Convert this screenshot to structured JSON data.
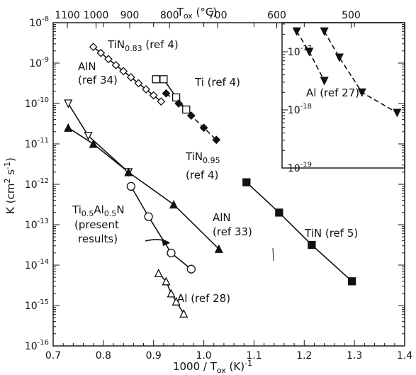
{
  "chart_data": [
    {
      "type": "scatter",
      "title": "",
      "xlabel": "1000 / T_ox (K)^-1",
      "ylabel": "K (cm^2 s^-1)",
      "top_xlabel": "T_ox (°C)",
      "xlim": [
        0.7,
        1.4
      ],
      "ylim_log10": [
        -16,
        -8
      ],
      "yscale": "log",
      "x_ticks": [
        "0.7",
        "0.8",
        "0.9",
        "1.0",
        "1.1",
        "1.2",
        "1.3",
        "1.4"
      ],
      "top_ticks_C": [
        "1100",
        "1000",
        "900",
        "800",
        "700",
        "600",
        "500"
      ],
      "top_ticks_display": [
        "1100",
        "1000",
        "900",
        "800",
        "700"
      ],
      "y_ticks_log10": [
        -16,
        -15,
        -14,
        -13,
        -12,
        -11,
        -10,
        -9,
        -8
      ],
      "series": [
        {
          "label": "TiN0.83 (ref 4)",
          "marker": "open-diamond",
          "line": "solid",
          "points": [
            [
              0.78,
              -8.6
            ],
            [
              0.795,
              -8.75
            ],
            [
              0.81,
              -8.9
            ],
            [
              0.825,
              -9.05
            ],
            [
              0.84,
              -9.2
            ],
            [
              0.855,
              -9.35
            ],
            [
              0.87,
              -9.5
            ],
            [
              0.885,
              -9.65
            ],
            [
              0.9,
              -9.8
            ],
            [
              0.915,
              -9.95
            ]
          ]
        },
        {
          "label": "Ti (ref 4)",
          "marker": "open-square",
          "line": "solid",
          "points": [
            [
              0.905,
              -9.4
            ],
            [
              0.92,
              -9.4
            ],
            [
              0.945,
              -9.85
            ],
            [
              0.965,
              -10.15
            ]
          ]
        },
        {
          "label": "TiN0.95 (ref 4)",
          "marker": "filled-diamond",
          "line": "dashed",
          "points": [
            [
              0.925,
              -9.75
            ],
            [
              0.95,
              -10.0
            ],
            [
              0.975,
              -10.3
            ],
            [
              1.0,
              -10.6
            ],
            [
              1.025,
              -10.9
            ]
          ]
        },
        {
          "label": "AlN (ref 34)",
          "marker": "open-triangle-down",
          "line": "solid",
          "points": [
            [
              0.73,
              -10.0
            ],
            [
              0.77,
              -10.8
            ],
            [
              0.85,
              -11.7
            ]
          ]
        },
        {
          "label": "AlN (ref 33)",
          "marker": "filled-triangle",
          "line": "solid",
          "points": [
            [
              0.73,
              -10.6
            ],
            [
              0.78,
              -11.0
            ],
            [
              0.85,
              -11.7
            ],
            [
              0.94,
              -12.5
            ],
            [
              1.03,
              -13.6
            ]
          ]
        },
        {
          "label": "Ti0.5Al0.5N (present results)",
          "marker": "open-circle",
          "line": "solid",
          "points": [
            [
              0.855,
              -12.05
            ],
            [
              0.89,
              -12.8
            ],
            [
              0.935,
              -13.7
            ],
            [
              0.975,
              -14.1
            ]
          ]
        },
        {
          "label": "Al (ref 28)",
          "marker": "open-triangle",
          "line": "solid",
          "points": [
            [
              0.91,
              -14.2
            ],
            [
              0.925,
              -14.4
            ],
            [
              0.935,
              -14.7
            ],
            [
              0.945,
              -14.9
            ],
            [
              0.96,
              -15.2
            ]
          ]
        },
        {
          "label": "TiN (ref 5)",
          "marker": "filled-square",
          "line": "solid",
          "points": [
            [
              1.085,
              -11.95
            ],
            [
              1.15,
              -12.7
            ],
            [
              1.215,
              -13.5
            ],
            [
              1.295,
              -14.4
            ]
          ]
        }
      ],
      "grid": false
    },
    {
      "type": "scatter",
      "title": "",
      "inset": true,
      "top_ticks_C": [
        "600",
        "500"
      ],
      "xlim": [
        1.15,
        1.4
      ],
      "ylim_log10": [
        -19,
        -16.5
      ],
      "yscale": "log",
      "y_ticks_log10": [
        -17,
        -18,
        -19
      ],
      "series": [
        {
          "label": "Al (ref 27)",
          "marker": "filled-triangle-down",
          "line": "dashed",
          "points": [
            [
              1.185,
              -16.65
            ],
            [
              1.21,
              -17.0
            ],
            [
              1.24,
              -17.5
            ]
          ]
        },
        {
          "label": "Al (ref 27)",
          "marker": "filled-triangle-down",
          "line": "dashed",
          "points": [
            [
              1.24,
              -16.65
            ],
            [
              1.27,
              -17.1
            ],
            [
              1.315,
              -17.7
            ],
            [
              1.385,
              -18.05
            ]
          ]
        }
      ],
      "grid": false
    }
  ],
  "text": {
    "y_label_main": "K (cm",
    "y_label_sup": "2",
    "y_label_mid": " s",
    "y_label_sup2": "-1",
    "y_label_end": ")",
    "x_label_main": "1000 / T",
    "x_label_sub": "ox",
    "x_label_end": "  (K)",
    "x_label_sup": "-1",
    "top_label_main": "T",
    "top_label_sub": "ox",
    "top_label_end": " (°C)",
    "l_tin083_a": "TiN",
    "l_tin083_sub": "0.83",
    "l_tin083_b": " (ref 4)",
    "l_ti": "Ti (ref 4)",
    "l_tin095_a": "TiN",
    "l_tin095_sub": "0.95",
    "l_tin095_b": "(ref 4)",
    "l_aln34_a": "AlN",
    "l_aln34_b": "(ref 34)",
    "l_present_a": "Ti",
    "l_present_s1": "0.5",
    "l_present_b": "Al",
    "l_present_s2": "0.5",
    "l_present_c": "N",
    "l_present_d": "(present",
    "l_present_e": "results)",
    "l_aln33_a": "AlN",
    "l_aln33_b": "(ref 33)",
    "l_al28": "Al (ref 28)",
    "l_tin5": "TiN (ref 5)",
    "l_al27": "Al (ref 27)",
    "tick_base": "10"
  }
}
